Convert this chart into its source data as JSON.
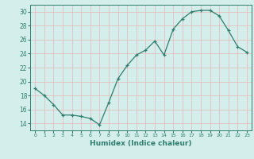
{
  "x": [
    0,
    1,
    2,
    3,
    4,
    5,
    6,
    7,
    8,
    9,
    10,
    11,
    12,
    13,
    14,
    15,
    16,
    17,
    18,
    19,
    20,
    21,
    22,
    23
  ],
  "y": [
    19.0,
    18.0,
    16.7,
    15.2,
    15.2,
    15.0,
    14.7,
    13.8,
    17.0,
    20.4,
    22.3,
    23.8,
    24.5,
    25.8,
    23.8,
    27.5,
    29.0,
    30.0,
    30.2,
    30.2,
    29.4,
    27.3,
    25.0,
    24.2
  ],
  "xlabel": "Humidex (Indice chaleur)",
  "bg_color": "#d4eeeb",
  "line_color": "#2e7d6e",
  "grid_color": "#e8b4b8",
  "ylim": [
    13,
    31
  ],
  "yticks": [
    14,
    16,
    18,
    20,
    22,
    24,
    26,
    28,
    30
  ],
  "xlim": [
    -0.5,
    23.5
  ]
}
